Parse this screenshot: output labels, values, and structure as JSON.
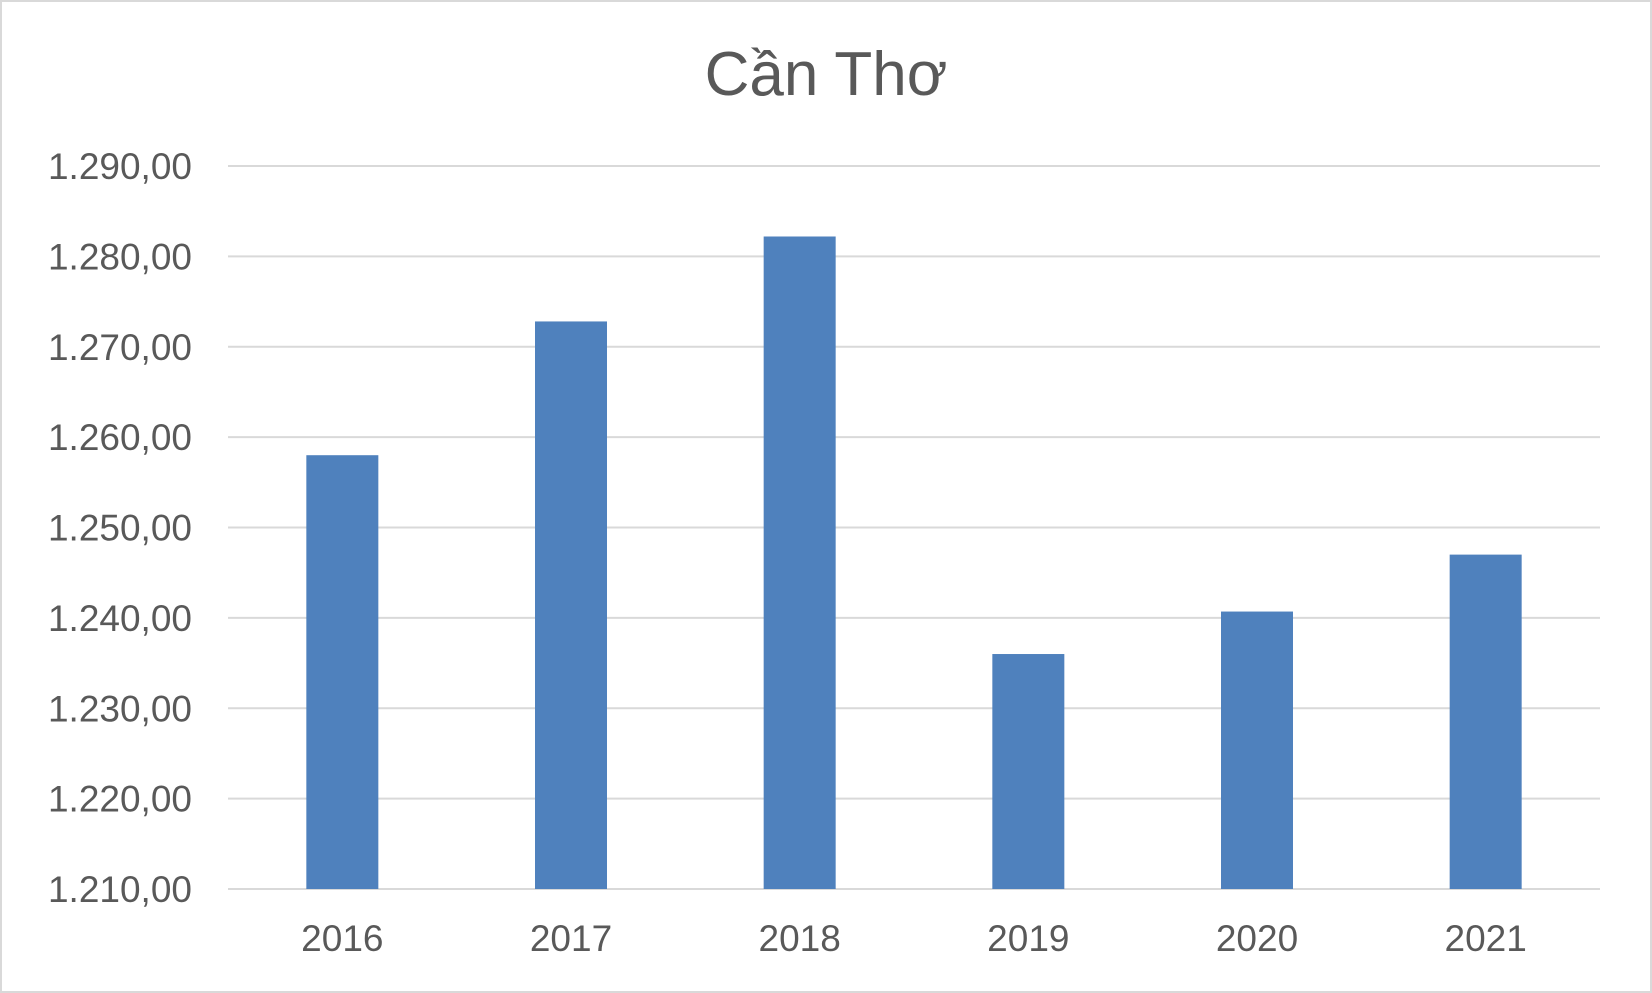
{
  "chart_data": {
    "type": "bar",
    "title": "Cần Thơ",
    "categories": [
      "2016",
      "2017",
      "2018",
      "2019",
      "2020",
      "2021"
    ],
    "values": [
      1258.0,
      1272.8,
      1282.2,
      1236.0,
      1240.7,
      1247.0
    ],
    "ylim": [
      1210,
      1290
    ],
    "y_ticks": [
      1210,
      1220,
      1230,
      1240,
      1250,
      1260,
      1270,
      1280,
      1290
    ],
    "y_tick_labels": [
      "1.210,00",
      "1.220,00",
      "1.230,00",
      "1.240,00",
      "1.250,00",
      "1.260,00",
      "1.270,00",
      "1.280,00",
      "1.290,00"
    ],
    "xlabel": "",
    "ylabel": "",
    "grid": true,
    "legend": "none",
    "colors": {
      "bar": "#4f81bd",
      "grid": "#d9d9d9",
      "text": "#595959"
    }
  }
}
